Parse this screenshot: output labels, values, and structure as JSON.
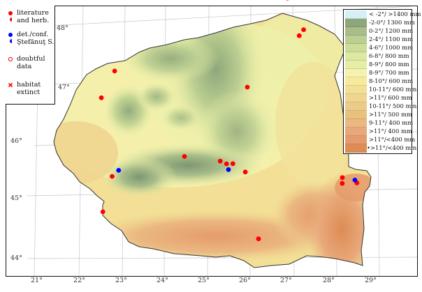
{
  "legend_symbols": {
    "items": [
      {
        "id": "literature",
        "label": "literature\nand herb.",
        "color": "#ff0000"
      },
      {
        "id": "det-conf",
        "label": "det./conf.\nŞtefănuţ S.",
        "color": "#0000ff"
      },
      {
        "id": "doubtful",
        "label": "doubtful\ndata",
        "color": "#ff0000"
      },
      {
        "id": "extinct",
        "label": "habitat\nextinct",
        "color": "#ff0000"
      }
    ]
  },
  "legend_climate": {
    "rows": [
      {
        "label": "< -2°/ >1400 mm",
        "color": "#d6eef6"
      },
      {
        "label": "-2-0°/ 1300 mm",
        "color": "#8ea77a"
      },
      {
        "label": "0-2°/ 1200 mm",
        "color": "#a8bd8a"
      },
      {
        "label": "2-4°/ 1100 mm",
        "color": "#bccf92"
      },
      {
        "label": "4-6°/ 1000 mm",
        "color": "#cddd98"
      },
      {
        "label": "6-8°/ 800 mm",
        "color": "#dce9a0"
      },
      {
        "label": "8-9°/ 800 mm",
        "color": "#e6eea6"
      },
      {
        "label": "8-9°/ 700 mm",
        "color": "#f4f2ad"
      },
      {
        "label": "8-10°/ 600 mm",
        "color": "#f8ea9c"
      },
      {
        "label": "10-11°/ 600 mm",
        "color": "#f3df95"
      },
      {
        "label": ">11°/ 600 mm",
        "color": "#efd58f"
      },
      {
        "label": "10-11°/ 500 mm",
        "color": "#eccb88"
      },
      {
        "label": ">11°/ 500 mm",
        "color": "#e9c07d"
      },
      {
        "label": "9-11°/ 400 mm",
        "color": "#ebb882"
      },
      {
        "label": ">11°/ 400 mm",
        "color": "#e9a87a"
      },
      {
        "label": ">11°/<400 mm",
        "color": "#e59b6c"
      },
      {
        "label": ">11°/<400 mm",
        "color": "#dd8c55",
        "marker": "•"
      }
    ]
  },
  "latitude_labels": [
    "48°",
    "47°",
    "46°",
    "45°",
    "44°"
  ],
  "longitude_labels": [
    "21°",
    "22°",
    "23°",
    "24°",
    "25°",
    "26°",
    "27°",
    "28°",
    "29°"
  ],
  "colors": {
    "literature": "#ff0000",
    "stefanut": "#0000ff",
    "border": "#333333"
  },
  "records": {
    "literature": [
      {
        "lon": 26.9,
        "lat": 48.25
      },
      {
        "lon": 27.3,
        "lat": 47.7
      },
      {
        "lon": 27.2,
        "lat": 47.6
      },
      {
        "lon": 22.85,
        "lat": 47.1
      },
      {
        "lon": 22.55,
        "lat": 46.65
      },
      {
        "lon": 26.0,
        "lat": 46.75
      },
      {
        "lon": 24.55,
        "lat": 45.6
      },
      {
        "lon": 25.4,
        "lat": 45.5
      },
      {
        "lon": 25.55,
        "lat": 45.45
      },
      {
        "lon": 25.7,
        "lat": 45.45
      },
      {
        "lon": 26.0,
        "lat": 45.3
      },
      {
        "lon": 22.85,
        "lat": 45.3
      },
      {
        "lon": 22.65,
        "lat": 44.7
      },
      {
        "lon": 26.35,
        "lat": 44.15
      },
      {
        "lon": 28.3,
        "lat": 45.15
      },
      {
        "lon": 28.3,
        "lat": 45.05
      },
      {
        "lon": 28.65,
        "lat": 45.05
      }
    ],
    "stefanut": [
      {
        "lon": 23.0,
        "lat": 45.4
      },
      {
        "lon": 25.6,
        "lat": 45.35
      },
      {
        "lon": 28.6,
        "lat": 45.1
      }
    ]
  }
}
